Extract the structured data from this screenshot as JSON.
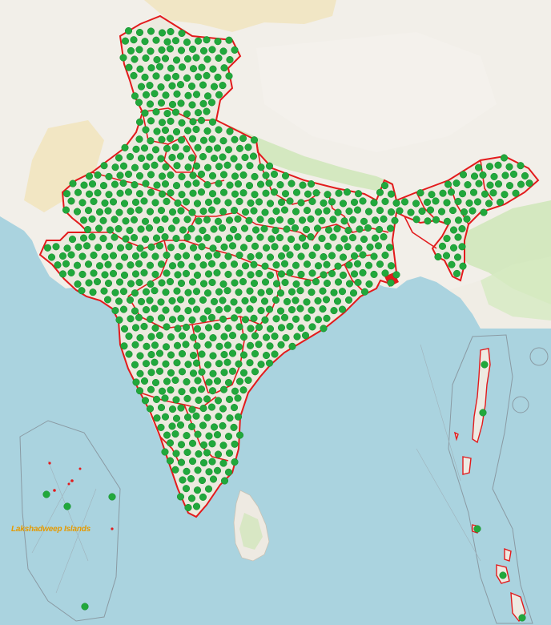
{
  "map": {
    "labels": {
      "lakshadweep": "Lakshadweep Islands"
    },
    "colors": {
      "sea": "#aad3df",
      "land": "#f2efe9",
      "landmass_south": "#eeeae2",
      "forest": "#cfe6b8",
      "desert": "#f1e3b5",
      "ice_highland": "#f4f1ec",
      "border": "#e31a1c",
      "station_dot": "#21a83c",
      "station_dot_edge": "#138a2a",
      "label": "#e59a00",
      "inset_line": "#8a9aa3"
    },
    "legend_marks": {
      "station_marker": "green-dot",
      "boundary": "red-line"
    }
  }
}
